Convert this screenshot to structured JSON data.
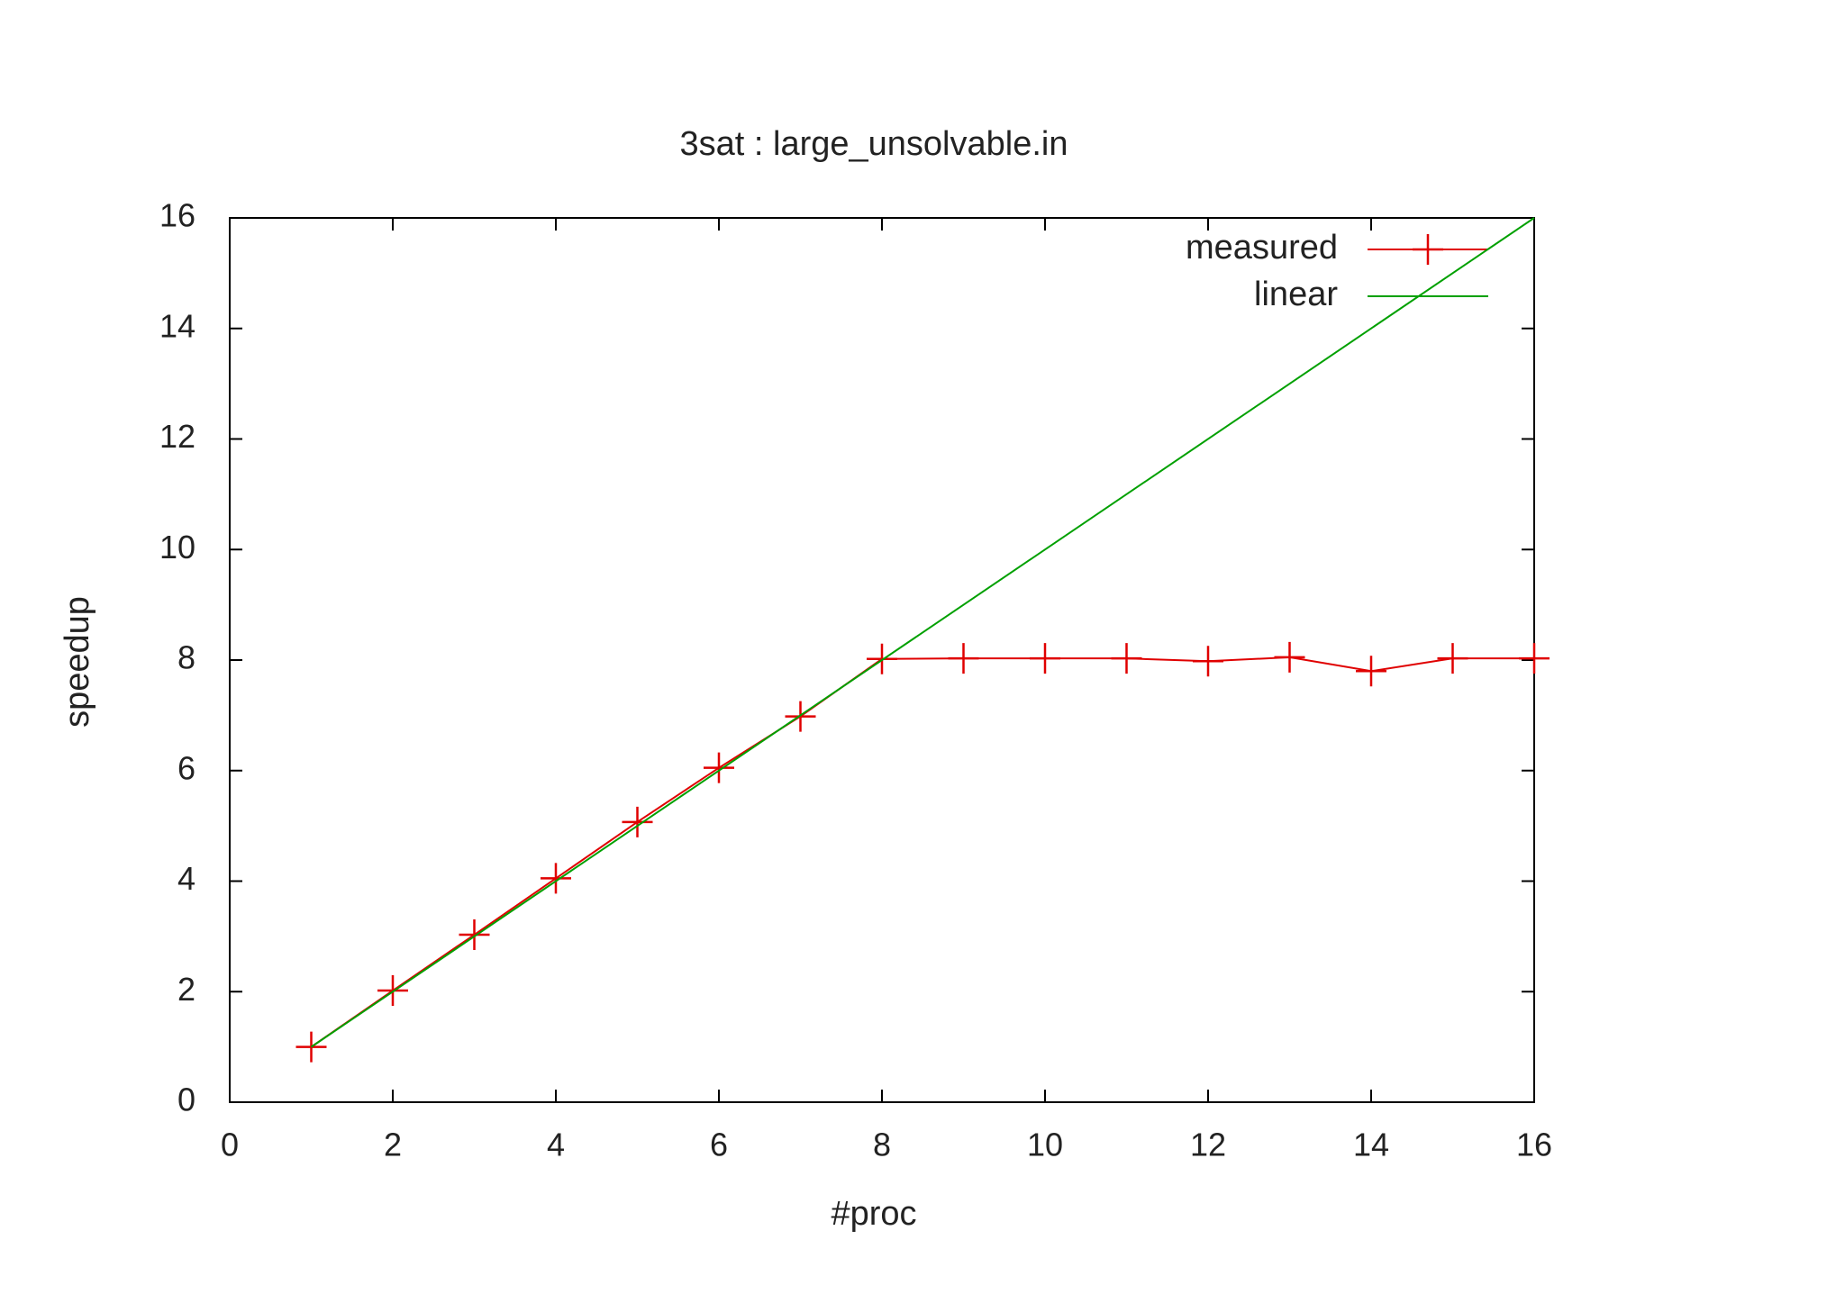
{
  "chart_data": {
    "type": "line",
    "title": "3sat : large_unsolvable.in",
    "x_label": "#proc",
    "y_label": "speedup",
    "xlim": [
      0,
      16
    ],
    "ylim": [
      0,
      16
    ],
    "xticks": [
      0,
      2,
      4,
      6,
      8,
      10,
      12,
      14,
      16
    ],
    "yticks": [
      0,
      2,
      4,
      6,
      8,
      10,
      12,
      14,
      16
    ],
    "legend": "top-right",
    "series": [
      {
        "name": "measured",
        "color": "#e00000",
        "markers": true,
        "x": [
          1,
          2,
          3,
          4,
          5,
          6,
          7,
          8,
          9,
          10,
          11,
          12,
          13,
          14,
          15,
          16
        ],
        "values": [
          1,
          2.02,
          3.03,
          4.05,
          5.07,
          6.05,
          6.98,
          8.02,
          8.03,
          8.03,
          8.03,
          7.98,
          8.05,
          7.8,
          8.03,
          8.03
        ]
      },
      {
        "name": "linear",
        "color": "#00a000",
        "markers": false,
        "x": [
          1,
          16
        ],
        "values": [
          1,
          16
        ]
      }
    ]
  }
}
